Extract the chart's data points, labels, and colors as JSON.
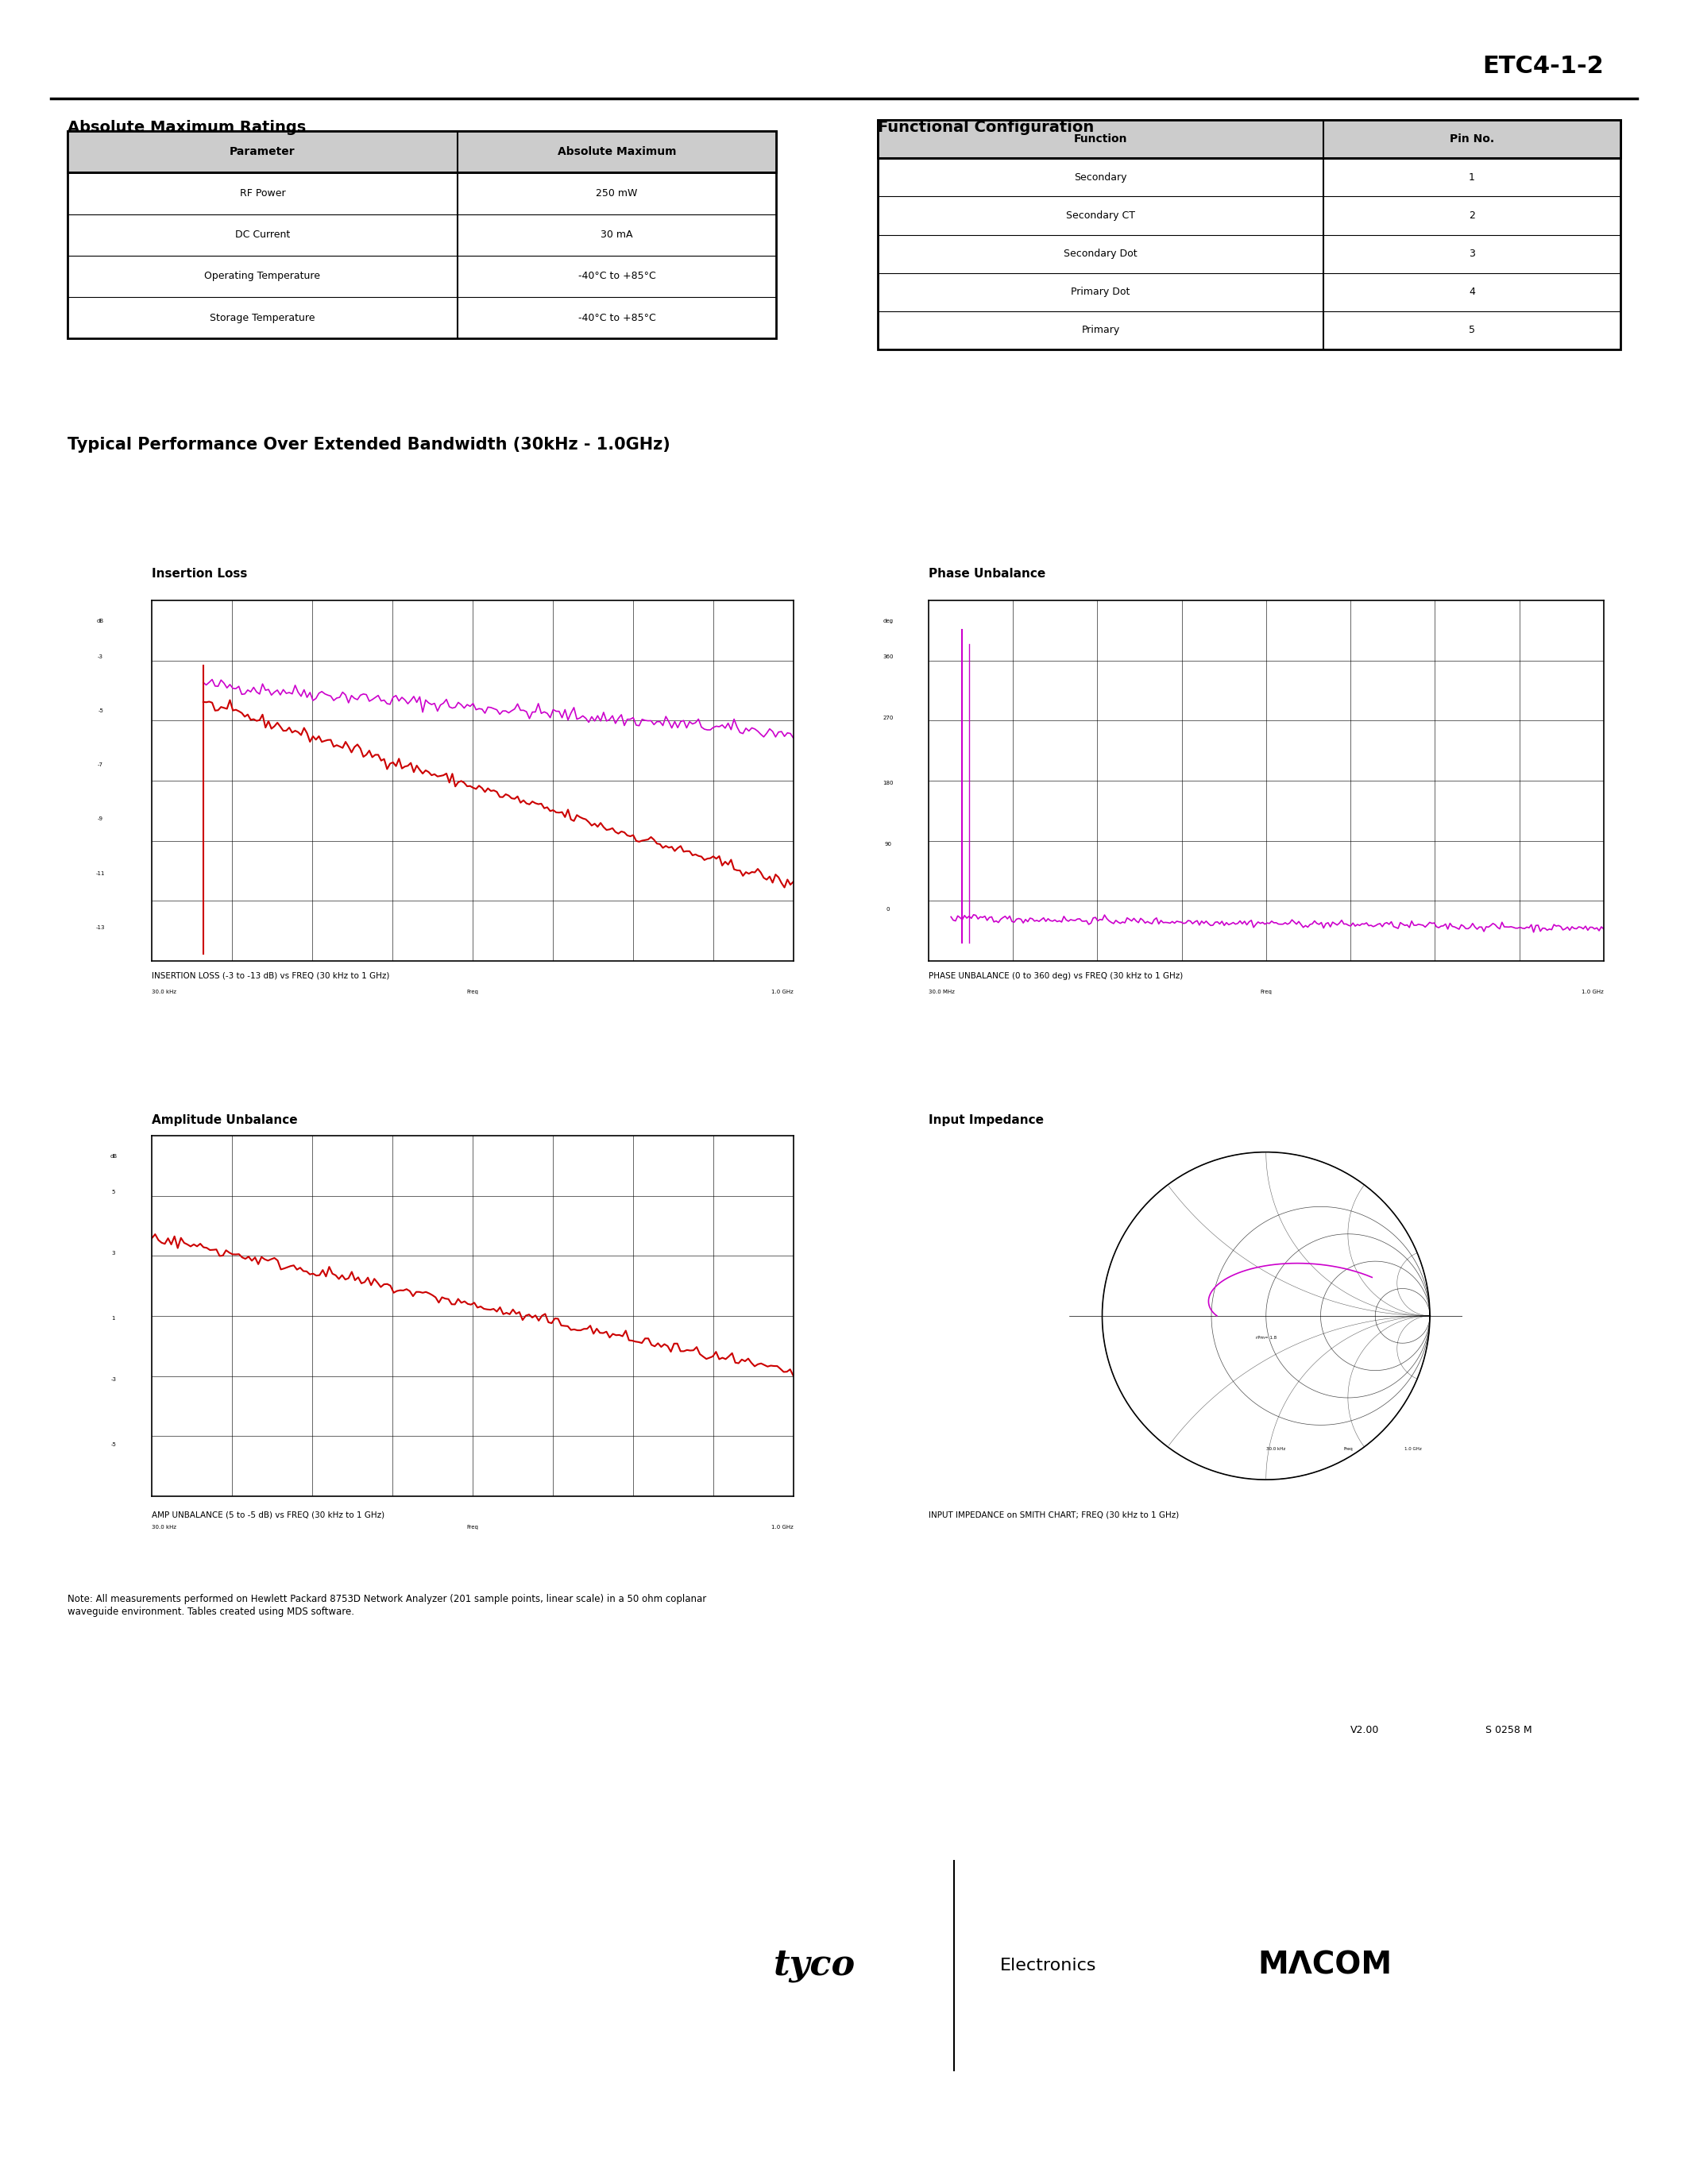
{
  "title": "ETC4-1-2",
  "section1_title": "Absolute Maximum Ratings",
  "section2_title": "Functional Configuration",
  "abs_max_headers": [
    "Parameter",
    "Absolute Maximum"
  ],
  "abs_max_rows": [
    [
      "RF Power",
      "250 mW"
    ],
    [
      "DC Current",
      "30 mA"
    ],
    [
      "Operating Temperature",
      "-40°C to +85°C"
    ],
    [
      "Storage Temperature",
      "-40°C to +85°C"
    ]
  ],
  "func_config_headers": [
    "Function",
    "Pin No."
  ],
  "func_config_rows": [
    [
      "Secondary",
      "1"
    ],
    [
      "Secondary CT",
      "2"
    ],
    [
      "Secondary Dot",
      "3"
    ],
    [
      "Primary Dot",
      "4"
    ],
    [
      "Primary",
      "5"
    ]
  ],
  "perf_title": "Typical Performance Over Extended Bandwidth (30kHz - 1.0GHz)",
  "plot_titles": [
    "Insertion Loss",
    "Phase Unbalance",
    "Amplitude Unbalance",
    "Input Impedance"
  ],
  "plot_captions": [
    "INSERTION LOSS (-3 to -13 dB) vs FREQ (30 kHz to 1 GHz)",
    "PHASE UNBALANCE (0 to 360 deg) vs FREQ (30 kHz to 1 GHz)",
    "AMP UNBALANCE (5 to -5 dB) vs FREQ (30 kHz to 1 GHz)",
    "INPUT IMPEDANCE on SMITH CHART; FREQ (30 kHz to 1 GHz)"
  ],
  "note_text": "Note: All measurements performed on Hewlett Packard 8753D Network Analyzer (201 sample points, linear scale) in a 50 ohm coplanar\nwaveguide environment. Tables created using MDS software.",
  "version_text": "V2.00",
  "stock_text": "S 0258 M",
  "bg_color": "#ffffff",
  "text_color": "#000000",
  "line_color_red": "#cc0000",
  "line_color_magenta": "#cc00cc",
  "header_bg": "#d3d3d3"
}
